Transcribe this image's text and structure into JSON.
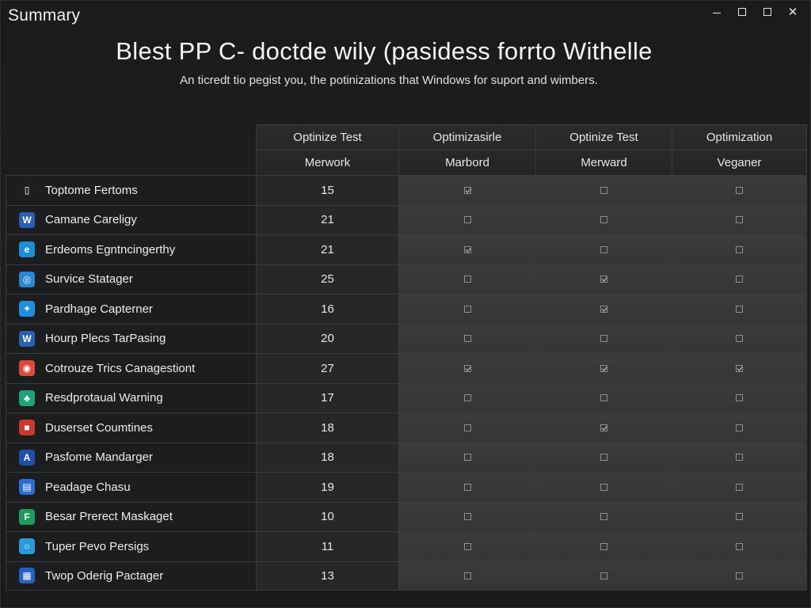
{
  "window": {
    "title": "Summary",
    "controls": {
      "minimize": "minimize",
      "maximize": "maximize",
      "restore": "restore",
      "close": "close"
    }
  },
  "headline": "Blest PP C- doctde wily (pasidess forrto Withelle",
  "subtitle": "An ticredt tio pegist you, the potinizations that Windows for suport and wimbers.",
  "columns": [
    {
      "line1": "Optinize Test",
      "line2": "Merwork"
    },
    {
      "line1": "Optimizasirle",
      "line2": "Marbord"
    },
    {
      "line1": "Optinize Test",
      "line2": "Merward"
    },
    {
      "line1": "Optimization",
      "line2": "Veganer"
    }
  ],
  "rows": [
    {
      "name": "Toptome Fertoms",
      "value": "15",
      "icon": "document-icon",
      "icon_color": "#1e1f20",
      "checks": [
        true,
        false,
        false
      ]
    },
    {
      "name": "Camane Careligy",
      "value": "21",
      "icon": "word-doc-icon",
      "icon_color": "#2b5fb3",
      "checks": [
        false,
        false,
        false
      ]
    },
    {
      "name": "Erdeoms Egntncingerthy",
      "value": "21",
      "icon": "edge-icon",
      "icon_color": "#1b8fd6",
      "checks": [
        true,
        false,
        false
      ]
    },
    {
      "name": "Survice Statager",
      "value": "25",
      "icon": "globe-icon",
      "icon_color": "#2a86d1",
      "checks": [
        false,
        true,
        false
      ]
    },
    {
      "name": "Pardhage Capterner",
      "value": "16",
      "icon": "twitter-icon",
      "icon_color": "#1d8fe0",
      "checks": [
        false,
        true,
        false
      ]
    },
    {
      "name": "Hourp Plecs TarPasing",
      "value": "20",
      "icon": "word-icon",
      "icon_color": "#2b5fb3",
      "checks": [
        false,
        false,
        false
      ]
    },
    {
      "name": "Cotrouze Trics Canagestiont",
      "value": "27",
      "icon": "chrome-icon",
      "icon_color": "#d94a3a",
      "checks": [
        true,
        true,
        true
      ]
    },
    {
      "name": "Resdprotaual Warning",
      "value": "17",
      "icon": "tree-icon",
      "icon_color": "#1ea37a",
      "checks": [
        false,
        false,
        false
      ]
    },
    {
      "name": "Duserset Coumtines",
      "value": "18",
      "icon": "app-icon",
      "icon_color": "#c9392e",
      "checks": [
        false,
        true,
        false
      ]
    },
    {
      "name": "Pasfome Mandarger",
      "value": "18",
      "icon": "letter-a-icon",
      "icon_color": "#1f4fa8",
      "checks": [
        false,
        false,
        false
      ]
    },
    {
      "name": "Peadage Chasu",
      "value": "19",
      "icon": "file-icon",
      "icon_color": "#2a6fd0",
      "checks": [
        false,
        false,
        false
      ]
    },
    {
      "name": "Besar Prerect Maskaget",
      "value": "10",
      "icon": "f-circle-icon",
      "icon_color": "#1e9a5e",
      "checks": [
        false,
        false,
        false
      ]
    },
    {
      "name": "Tuper Pevo Persigs",
      "value": "11",
      "icon": "ring-icon",
      "icon_color": "#2a9bd8",
      "checks": [
        false,
        false,
        false
      ]
    },
    {
      "name": "Twop Oderig Pactager",
      "value": "13",
      "icon": "office-icon",
      "icon_color": "#2463c2",
      "checks": [
        false,
        false,
        false
      ]
    }
  ]
}
